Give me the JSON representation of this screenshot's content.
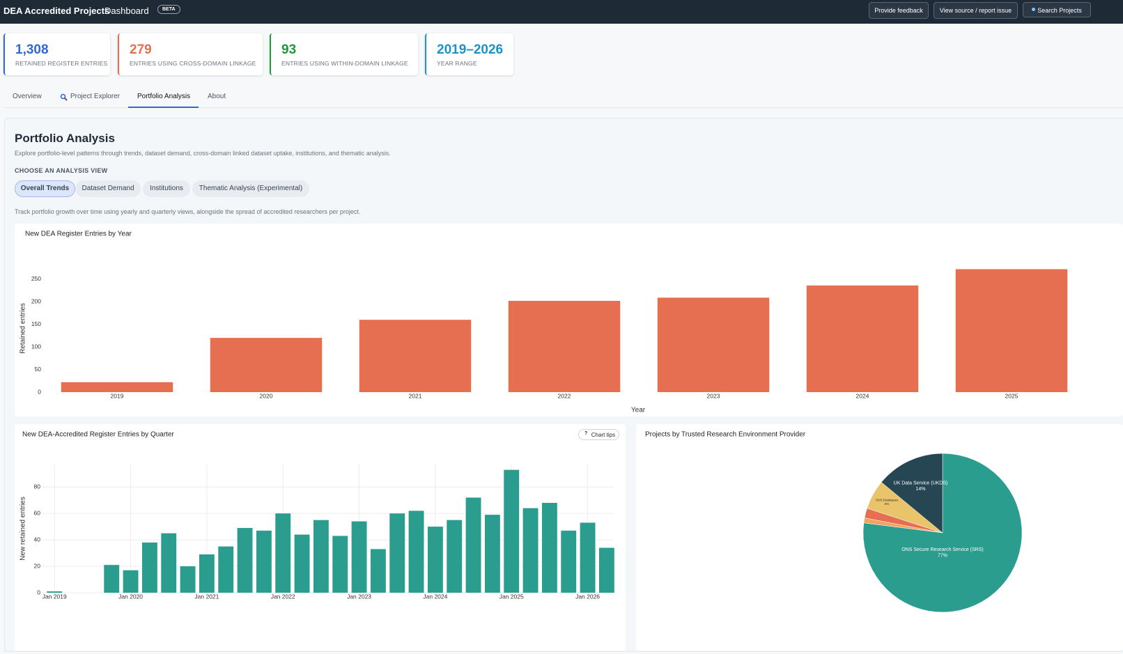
{
  "header": {
    "title": "DEA Accredited Projects",
    "subtitle": "Dashboard",
    "badge": "BETA",
    "buttons": [
      "Provide feedback",
      "View source / report issue",
      "Search Projects"
    ]
  },
  "kpis": [
    {
      "value": "1,308",
      "label": "RETAINED REGISTER ENTRIES",
      "color": "#3068cf"
    },
    {
      "value": "279",
      "label": "ENTRIES USING CROSS-DOMAIN LINKAGE",
      "color": "#e76f51"
    },
    {
      "value": "93",
      "label": "ENTRIES USING WITHIN-DOMAIN LINKAGE",
      "color": "#1b9a3a"
    },
    {
      "value": "2019–2026",
      "label": "YEAR RANGE",
      "color": "#1b93c4"
    }
  ],
  "tabs": [
    "Overview",
    "Project Explorer",
    "Portfolio Analysis",
    "About"
  ],
  "section": {
    "title": "Portfolio Analysis",
    "description": "Explore portfolio-level patterns through trends, dataset demand, cross-domain linked dataset uptake, institutions, and thematic analysis.",
    "choose_label": "CHOOSE AN ANALYSIS VIEW",
    "views": [
      "Overall Trends",
      "Dataset Demand",
      "Institutions",
      "Thematic Analysis (Experimental)"
    ],
    "view_description": "Track portfolio growth over time using yearly and quarterly views, alongside the spread of accredited researchers per project."
  },
  "chart_tips": "Chart tips",
  "chart_data": [
    {
      "type": "bar",
      "title": "New DEA Register Entries by Year",
      "xlabel": "Year",
      "ylabel": "Retained entries",
      "categories": [
        "2019",
        "2020",
        "2021",
        "2022",
        "2023",
        "2024",
        "2025"
      ],
      "values": [
        22,
        120,
        160,
        202,
        209,
        236,
        272
      ],
      "color": "#e76f51",
      "ylim": [
        0,
        282
      ],
      "yticks": [
        0,
        50,
        100,
        150,
        200,
        250
      ],
      "grid": false
    },
    {
      "type": "date-bar",
      "title": "New DEA-Accredited Register Entries by Quarter",
      "ylabel": "New retained entries",
      "x": [
        "2019-01",
        "2019-10",
        "2020-01",
        "2020-04",
        "2020-07",
        "2020-10",
        "2021-01",
        "2021-04",
        "2021-07",
        "2021-10",
        "2022-01",
        "2022-04",
        "2022-07",
        "2022-10",
        "2023-01",
        "2023-04",
        "2023-07",
        "2023-10",
        "2024-01",
        "2024-04",
        "2024-07",
        "2024-10",
        "2025-01",
        "2025-04",
        "2025-07",
        "2025-10",
        "2026-01",
        "2026-04"
      ],
      "values": [
        1,
        21,
        17,
        38,
        45,
        20,
        29,
        35,
        49,
        47,
        60,
        44,
        55,
        43,
        54,
        33,
        60,
        62,
        50,
        55,
        72,
        59,
        93,
        64,
        68,
        47,
        53,
        34
      ],
      "color": "#2a9d8f",
      "xlim": [
        "2018-11",
        "2026-05"
      ],
      "xticks": [
        {
          "value": "2019-01",
          "label": "Jan 2019"
        },
        {
          "value": "2020-01",
          "label": "Jan 2020"
        },
        {
          "value": "2021-01",
          "label": "Jan 2021"
        },
        {
          "value": "2022-01",
          "label": "Jan 2022"
        },
        {
          "value": "2023-01",
          "label": "Jan 2023"
        },
        {
          "value": "2024-01",
          "label": "Jan 2024"
        },
        {
          "value": "2025-01",
          "label": "Jan 2025"
        },
        {
          "value": "2026-01",
          "label": "Jan 2026"
        }
      ],
      "ylim": [
        0,
        97
      ],
      "yticks": [
        0,
        20,
        40,
        60,
        80
      ],
      "grid": true
    },
    {
      "type": "pie",
      "title": "Projects by Trusted Research Environment Provider",
      "categories": [
        "ONS Secure Research Service (SRS)",
        null,
        null,
        "ONS Databases",
        "UK Data Service (UKDS)"
      ],
      "values": [
        77,
        1,
        2,
        6,
        14
      ],
      "value_labels": [
        "77%",
        null,
        null,
        "6%",
        "14%"
      ],
      "colors": [
        "#2a9d8f",
        "#f4a261",
        "#e76f51",
        "#e9c46a",
        "#264653"
      ]
    }
  ]
}
